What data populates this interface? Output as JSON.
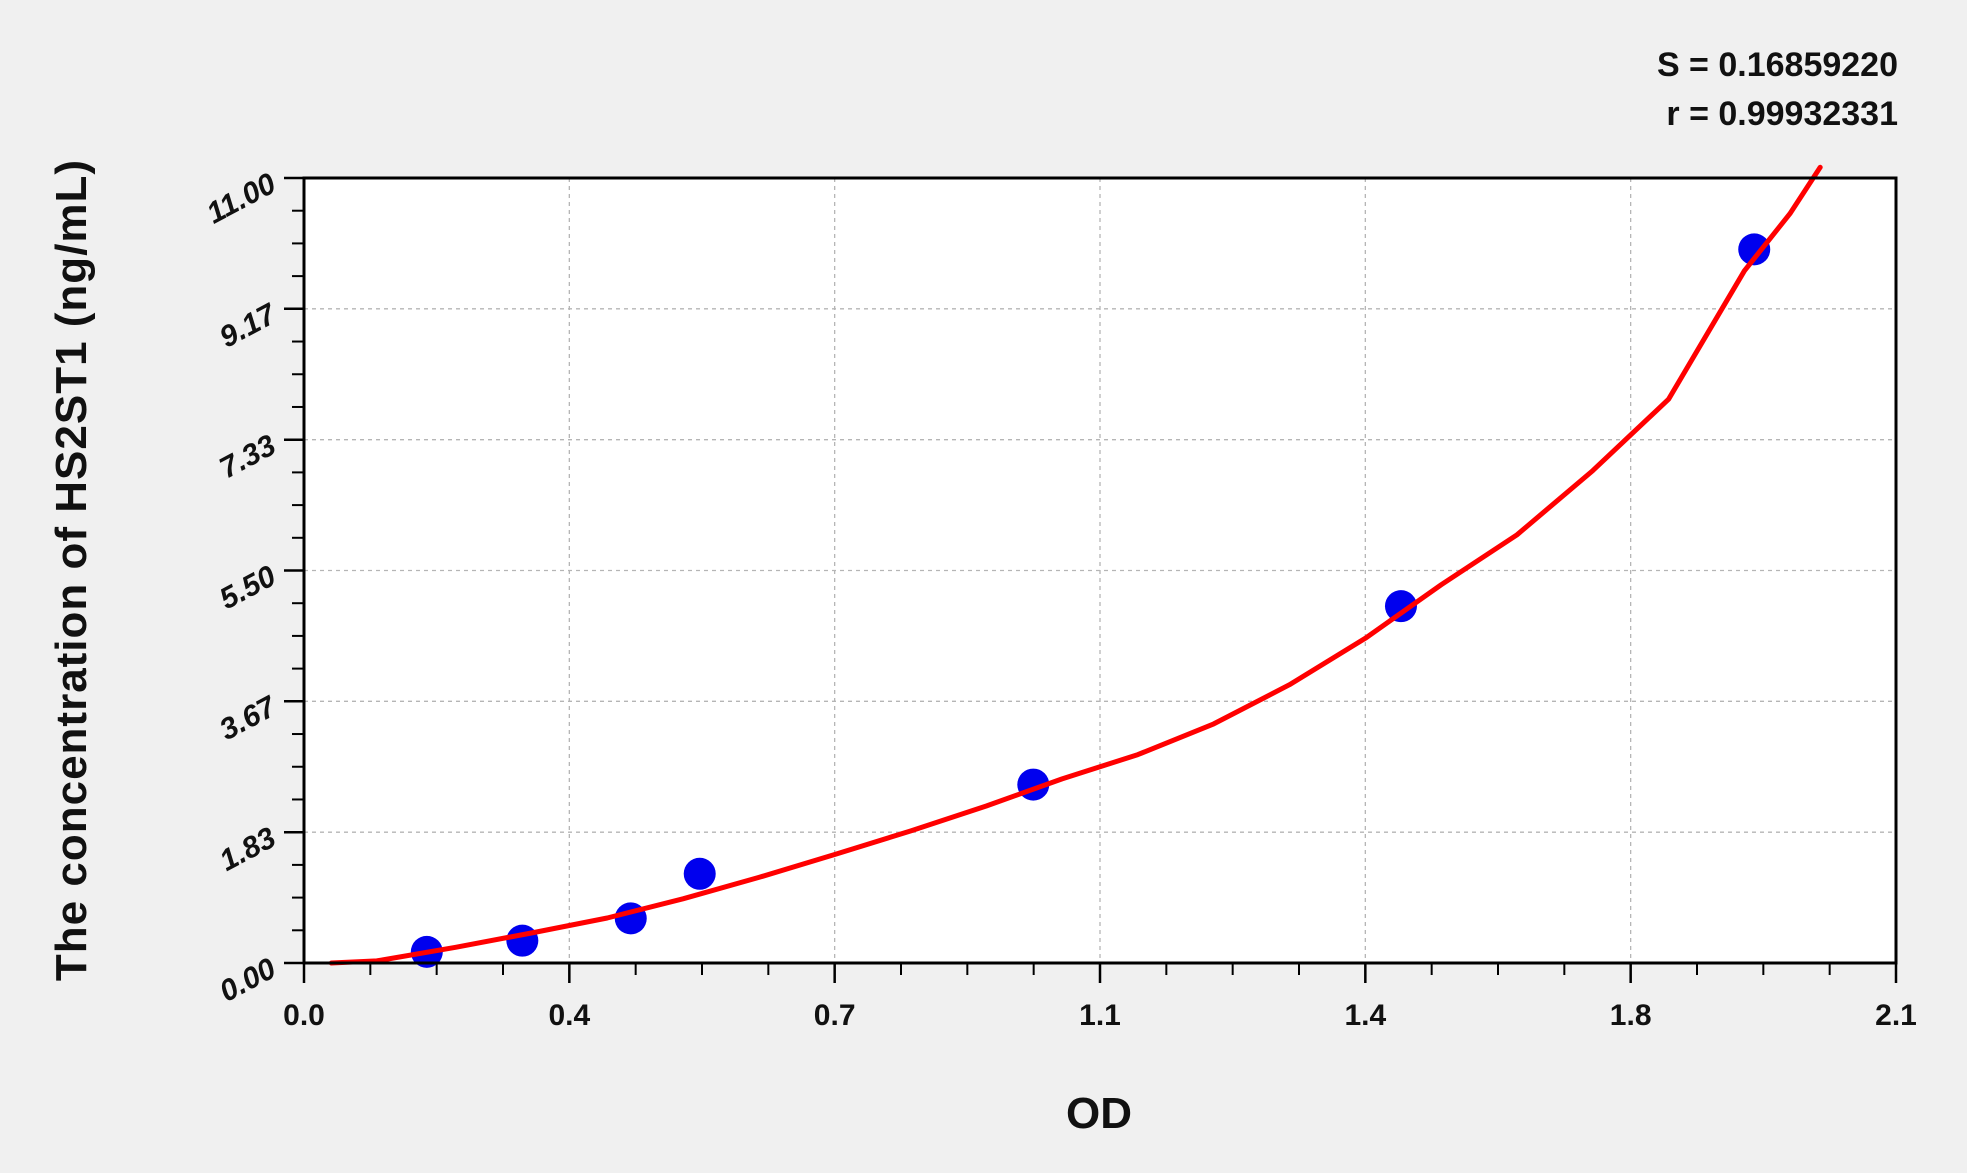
{
  "chart_data": {
    "type": "scatter",
    "title": "",
    "xlabel": "OD",
    "ylabel": "The concentration of HS2ST1 (ng/mL)",
    "xlim": [
      0,
      2.1
    ],
    "ylim": [
      0,
      11
    ],
    "grid": true,
    "x_ticks": [
      0,
      0.35,
      0.7,
      1.05,
      1.4,
      1.75,
      2.1
    ],
    "x_tick_labels": [
      "0.0",
      "0.4",
      "0.7",
      "1.1",
      "1.4",
      "1.8",
      "2.1"
    ],
    "y_ticks": [
      0,
      1.833,
      3.667,
      5.5,
      7.333,
      9.167,
      11
    ],
    "y_tick_labels": [
      "0.00",
      "1.83",
      "3.67",
      "5.50",
      "7.33",
      "9.17",
      "11.00"
    ],
    "stats": [
      "S = 0.16859220",
      "r = 0.99932331"
    ],
    "points": {
      "color": "#0000ee",
      "x": [
        0.162,
        0.288,
        0.431,
        0.522,
        0.962,
        1.447,
        1.913
      ],
      "y": [
        0.156,
        0.313,
        0.625,
        1.25,
        2.5,
        5.0,
        10.0
      ]
    },
    "fit_curve": {
      "color": "#ff0000",
      "x": [
        0.036,
        0.096,
        0.2,
        0.3,
        0.4,
        0.5,
        0.6,
        0.7,
        0.8,
        0.9,
        1.0,
        1.1,
        1.2,
        1.3,
        1.4,
        1.5,
        1.6,
        1.7,
        1.8,
        1.9,
        1.96,
        2.0
      ],
      "y": [
        0.0,
        0.03,
        0.22,
        0.42,
        0.63,
        0.9,
        1.2,
        1.52,
        1.85,
        2.2,
        2.58,
        2.92,
        3.35,
        3.9,
        4.55,
        5.3,
        6.0,
        6.9,
        7.9,
        9.7,
        10.5,
        11.15
      ]
    }
  }
}
